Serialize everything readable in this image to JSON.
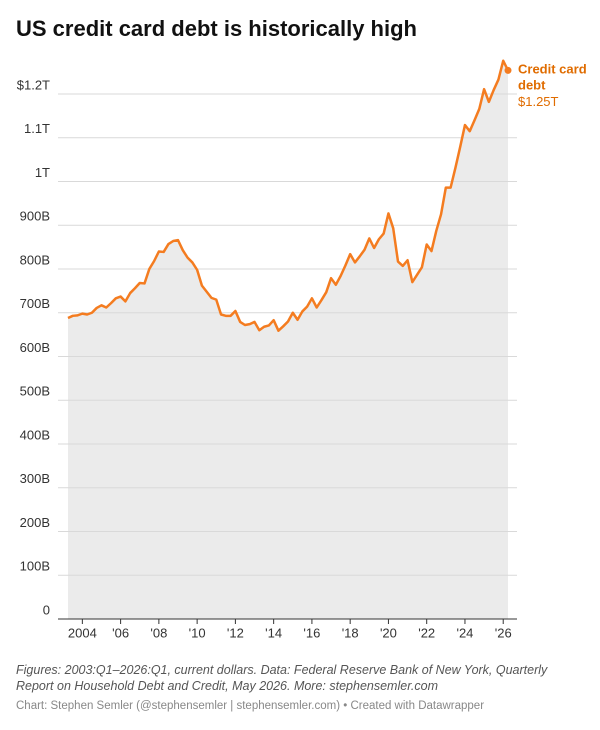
{
  "chart_data": {
    "type": "line",
    "title": "US credit card debt is historically high",
    "notes": "Figures: 2003:Q1–2026:Q1, current dollars. Data: Federal Reserve Bank of New York, Quarterly Report on Household Debt and Credit, May 2026. More: stephensemler.com",
    "source": "Chart: Stephen Semler (@stephensemler | stephensemler.com) • Created with Datawrapper",
    "x": [
      2003.25,
      2003.5,
      2003.75,
      2004,
      2004.25,
      2004.5,
      2004.75,
      2005,
      2005.25,
      2005.5,
      2005.75,
      2006,
      2006.25,
      2006.5,
      2006.75,
      2007,
      2007.25,
      2007.5,
      2007.75,
      2008,
      2008.25,
      2008.5,
      2008.75,
      2009,
      2009.25,
      2009.5,
      2009.75,
      2010,
      2010.25,
      2010.5,
      2010.75,
      2011,
      2011.25,
      2011.5,
      2011.75,
      2012,
      2012.25,
      2012.5,
      2012.75,
      2013,
      2013.25,
      2013.5,
      2013.75,
      2014,
      2014.25,
      2014.5,
      2014.75,
      2015,
      2015.25,
      2015.5,
      2015.75,
      2016,
      2016.25,
      2016.5,
      2016.75,
      2017,
      2017.25,
      2017.5,
      2017.75,
      2018,
      2018.25,
      2018.5,
      2018.75,
      2019,
      2019.25,
      2019.5,
      2019.75,
      2020,
      2020.25,
      2020.5,
      2020.75,
      2021,
      2021.25,
      2021.5,
      2021.75,
      2022,
      2022.25,
      2022.5,
      2022.75,
      2023,
      2023.25,
      2023.5,
      2023.75,
      2024,
      2024.25,
      2024.5,
      2024.75,
      2025,
      2025.25,
      2025.5,
      2025.75,
      2026,
      2026.25
    ],
    "series": [
      {
        "name": "Credit card debt",
        "color": "#f47c20",
        "values": [
          688,
          693,
          694,
          698,
          696,
          700,
          711,
          717,
          712,
          722,
          733,
          737,
          726,
          745,
          756,
          768,
          767,
          800,
          818,
          840,
          839,
          857,
          864,
          866,
          843,
          826,
          815,
          798,
          762,
          748,
          734,
          730,
          696,
          693,
          693,
          704,
          679,
          672,
          674,
          679,
          660,
          668,
          671,
          683,
          659,
          669,
          680,
          700,
          684,
          703,
          714,
          733,
          712,
          729,
          747,
          779,
          764,
          784,
          808,
          834,
          815,
          829,
          844,
          870,
          848,
          868,
          881,
          927,
          893,
          817,
          807,
          820,
          770,
          787,
          804,
          856,
          841,
          887,
          925,
          986,
          986,
          1031,
          1079,
          1129,
          1115,
          1140,
          1166,
          1211,
          1182,
          1209,
          1233,
          1276,
          1254
        ],
        "value_labels": [
          null,
          null,
          null,
          null,
          null,
          null,
          null,
          null,
          null,
          null,
          null,
          null,
          null,
          null,
          null,
          null,
          null,
          null,
          null,
          null,
          null,
          null,
          null,
          null,
          null,
          null,
          null,
          null,
          null,
          null,
          null,
          null,
          null,
          null,
          null,
          null,
          null,
          null,
          null,
          null,
          null,
          null,
          null,
          null,
          null,
          null,
          null,
          null,
          null,
          null,
          null,
          null,
          null,
          null,
          null,
          null,
          null,
          null,
          null,
          null,
          null,
          null,
          null,
          null,
          null,
          null,
          null,
          null,
          null,
          null,
          null,
          null,
          null,
          null,
          null,
          null,
          null,
          null,
          null,
          null,
          null,
          null,
          null,
          null,
          null,
          null,
          null,
          null,
          null,
          null,
          null,
          null,
          "$1.25T"
        ]
      }
    ],
    "xlim": [
      2003.25,
      2026.25
    ],
    "xticks": [
      2004,
      {
        "value": 2006,
        "label": "'06"
      },
      {
        "value": 2008,
        "label": "'08"
      },
      {
        "value": 2010,
        "label": "'10"
      },
      {
        "value": 2012,
        "label": "'12"
      },
      {
        "value": 2014,
        "label": "'14"
      },
      {
        "value": 2016,
        "label": "'16"
      },
      {
        "value": 2018,
        "label": "'18"
      },
      {
        "value": 2020,
        "label": "'20"
      },
      {
        "value": 2022,
        "label": "'22"
      },
      {
        "value": 2024,
        "label": "'24"
      },
      {
        "value": 2026,
        "label": "'26"
      }
    ],
    "ylim": [
      0,
      1280
    ],
    "yticks": [
      0,
      {
        "value": 100,
        "label": "100B"
      },
      {
        "value": 200,
        "label": "200B"
      },
      {
        "value": 300,
        "label": "300B"
      },
      {
        "value": 400,
        "label": "400B"
      },
      {
        "value": 500,
        "label": "500B"
      },
      {
        "value": 600,
        "label": "600B"
      },
      {
        "value": 700,
        "label": "700B"
      },
      {
        "value": 800,
        "label": "800B"
      },
      {
        "value": 900,
        "label": "900B"
      },
      {
        "value": 1000,
        "label": "1T"
      },
      {
        "value": 1100,
        "label": "1.1T"
      },
      {
        "value": 1200,
        "label": "$1.2T"
      }
    ],
    "grid": true,
    "area": true,
    "area_color": "#ebebeb",
    "label_color": "#e06c00"
  }
}
